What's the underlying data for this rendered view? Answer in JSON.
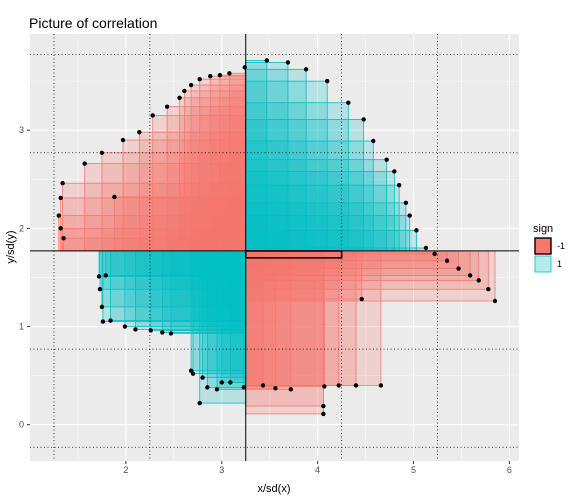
{
  "chart_data": {
    "type": "scatter",
    "title": "Picture of correlation",
    "xlabel": "x/sd(x)",
    "ylabel": "y/sd(y)",
    "xlim": [
      1.0,
      6.1
    ],
    "ylim": [
      -0.37,
      3.98
    ],
    "x_ticks": [
      2,
      3,
      4,
      5,
      6
    ],
    "y_ticks": [
      0,
      1,
      2,
      3
    ],
    "grid": true,
    "center": {
      "x": 3.25,
      "y": 1.77
    },
    "sd_lines_x": [
      1.25,
      2.25,
      4.25,
      5.25
    ],
    "sd_lines_y": [
      -0.23,
      0.77,
      2.77,
      3.77
    ],
    "highlight_rect": {
      "x": [
        3.25,
        4.25
      ],
      "y": [
        1.77,
        1.7
      ]
    },
    "legend": {
      "title": "sign",
      "position": "right",
      "entries": [
        {
          "label": "-1",
          "color": "#F8766D"
        },
        {
          "label": "1",
          "color": "#00BFC4"
        }
      ]
    },
    "points": [
      {
        "x": 1.34,
        "y": 2.46
      },
      {
        "x": 1.32,
        "y": 2.31
      },
      {
        "x": 1.3,
        "y": 2.13
      },
      {
        "x": 1.32,
        "y": 2.0
      },
      {
        "x": 1.35,
        "y": 1.9
      },
      {
        "x": 1.57,
        "y": 2.66
      },
      {
        "x": 1.75,
        "y": 2.77
      },
      {
        "x": 1.97,
        "y": 2.9
      },
      {
        "x": 2.14,
        "y": 2.98
      },
      {
        "x": 1.88,
        "y": 2.32
      },
      {
        "x": 2.28,
        "y": 3.15
      },
      {
        "x": 2.43,
        "y": 3.24
      },
      {
        "x": 2.56,
        "y": 3.33
      },
      {
        "x": 2.61,
        "y": 3.4
      },
      {
        "x": 2.68,
        "y": 3.46
      },
      {
        "x": 2.77,
        "y": 3.52
      },
      {
        "x": 2.88,
        "y": 3.55
      },
      {
        "x": 2.98,
        "y": 3.56
      },
      {
        "x": 3.08,
        "y": 3.58
      },
      {
        "x": 3.24,
        "y": 3.64
      },
      {
        "x": 3.47,
        "y": 3.71
      },
      {
        "x": 3.69,
        "y": 3.69
      },
      {
        "x": 3.88,
        "y": 3.62
      },
      {
        "x": 4.1,
        "y": 3.5
      },
      {
        "x": 4.32,
        "y": 3.28
      },
      {
        "x": 4.48,
        "y": 3.11
      },
      {
        "x": 4.58,
        "y": 2.89
      },
      {
        "x": 4.72,
        "y": 2.7
      },
      {
        "x": 4.8,
        "y": 2.58
      },
      {
        "x": 4.85,
        "y": 2.44
      },
      {
        "x": 4.92,
        "y": 2.26
      },
      {
        "x": 4.96,
        "y": 2.13
      },
      {
        "x": 5.03,
        "y": 1.98
      },
      {
        "x": 5.13,
        "y": 1.8
      },
      {
        "x": 5.22,
        "y": 1.74
      },
      {
        "x": 5.35,
        "y": 1.67
      },
      {
        "x": 5.47,
        "y": 1.59
      },
      {
        "x": 5.59,
        "y": 1.52
      },
      {
        "x": 5.68,
        "y": 1.47
      },
      {
        "x": 5.78,
        "y": 1.38
      },
      {
        "x": 5.85,
        "y": 1.26
      },
      {
        "x": 4.46,
        "y": 1.28
      },
      {
        "x": 4.66,
        "y": 0.4
      },
      {
        "x": 4.4,
        "y": 0.4
      },
      {
        "x": 4.22,
        "y": 0.4
      },
      {
        "x": 4.07,
        "y": 0.39
      },
      {
        "x": 4.06,
        "y": 0.19
      },
      {
        "x": 4.06,
        "y": 0.11
      },
      {
        "x": 3.72,
        "y": 0.36
      },
      {
        "x": 3.56,
        "y": 0.37
      },
      {
        "x": 3.43,
        "y": 0.4
      },
      {
        "x": 3.23,
        "y": 0.38
      },
      {
        "x": 3.09,
        "y": 0.43
      },
      {
        "x": 3.0,
        "y": 0.43
      },
      {
        "x": 2.95,
        "y": 0.36
      },
      {
        "x": 2.85,
        "y": 0.38
      },
      {
        "x": 2.8,
        "y": 0.48
      },
      {
        "x": 2.77,
        "y": 0.22
      },
      {
        "x": 2.7,
        "y": 0.52
      },
      {
        "x": 2.68,
        "y": 0.55
      },
      {
        "x": 2.47,
        "y": 0.93
      },
      {
        "x": 2.38,
        "y": 0.94
      },
      {
        "x": 2.26,
        "y": 0.96
      },
      {
        "x": 2.1,
        "y": 0.97
      },
      {
        "x": 1.99,
        "y": 1.0
      },
      {
        "x": 1.84,
        "y": 1.06
      },
      {
        "x": 1.76,
        "y": 1.05
      },
      {
        "x": 1.75,
        "y": 1.2
      },
      {
        "x": 1.73,
        "y": 1.38
      },
      {
        "x": 1.72,
        "y": 1.51
      },
      {
        "x": 1.79,
        "y": 1.52
      }
    ]
  }
}
